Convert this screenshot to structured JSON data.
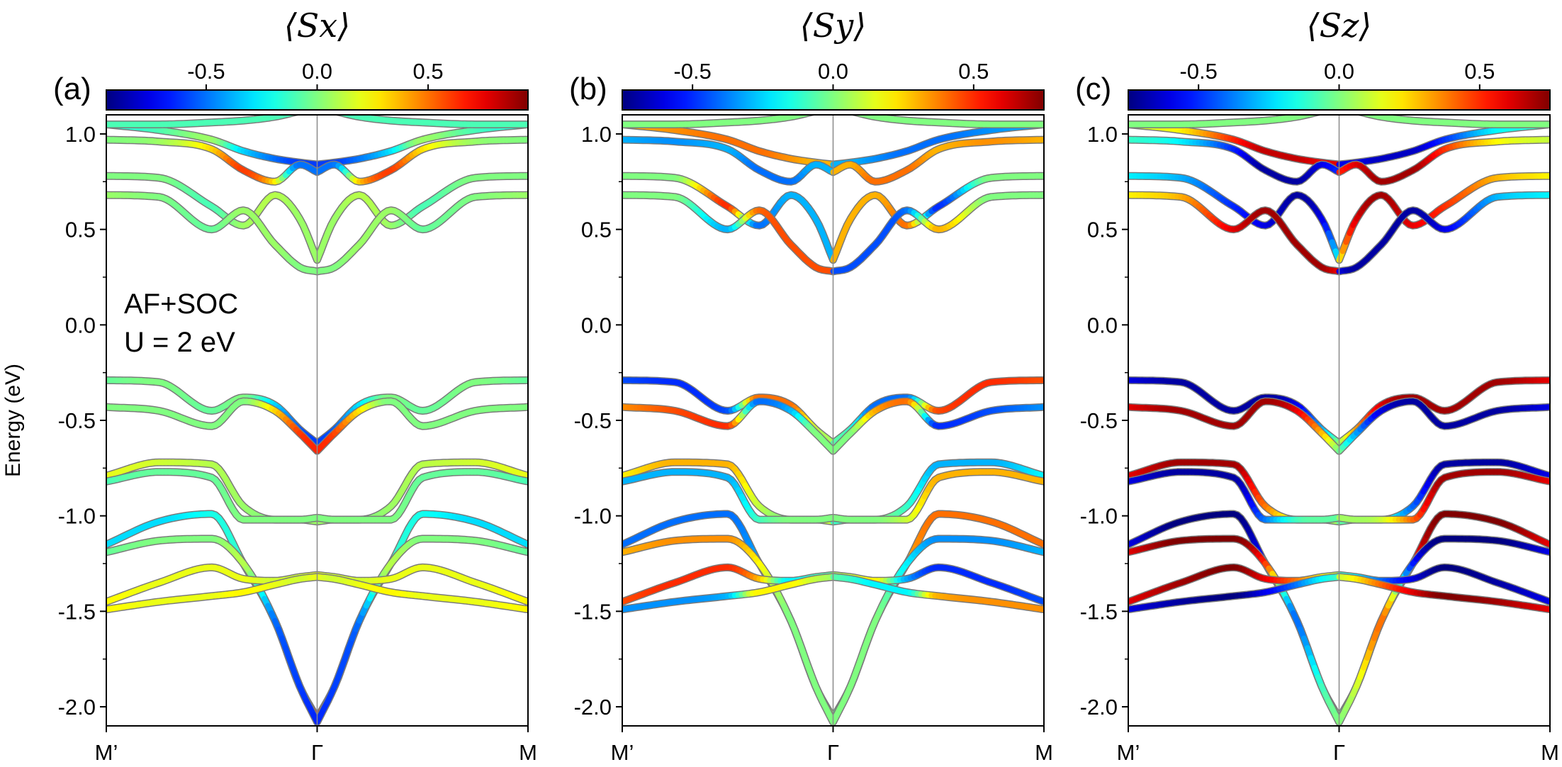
{
  "chart_data": [
    {
      "type": "line",
      "panel": "(a)",
      "colorbar_label": "⟨Sx⟩",
      "colorbar_ticks": [
        "-0.5",
        "0.0",
        "0.5"
      ],
      "colorbar_range": [
        -0.95,
        0.95
      ],
      "xlabels": [
        "M’",
        "Γ",
        "M"
      ],
      "ylabel": "Energy (eV)",
      "ylim": [
        -2.1,
        1.1
      ],
      "yticks": [
        "-2.0",
        "-1.5",
        "-1.0",
        "-0.5",
        "0.0",
        "0.5",
        "1.0"
      ],
      "annotation": [
        "AF+SOC",
        "U = 2 eV"
      ],
      "series": [
        {
          "y": [
            1.05,
            1.02,
            0.97,
            0.91,
            0.87,
            0.85,
            0.84
          ],
          "spin": [
            -0.2,
            -0.1,
            0.05,
            -0.3,
            -0.5,
            -0.6,
            -0.6
          ]
        },
        {
          "y": [
            0.97,
            0.96,
            0.92,
            0.81,
            0.75,
            0.84,
            0.8
          ],
          "spin": [
            0.0,
            0.05,
            0.3,
            0.6,
            0.3,
            -0.5,
            -0.5
          ]
        },
        {
          "y": [
            0.78,
            0.77,
            0.62,
            0.52,
            0.68,
            0.55,
            0.34
          ],
          "spin": [
            0.0,
            0.0,
            -0.1,
            0.05,
            0.1,
            0.05,
            0.05
          ]
        },
        {
          "y": [
            0.68,
            0.67,
            0.5,
            0.6,
            0.42,
            0.3,
            0.28
          ],
          "spin": [
            0.05,
            0.0,
            -0.05,
            0.05,
            0.05,
            0.0,
            0.0
          ]
        },
        {
          "y": [
            -0.29,
            -0.3,
            -0.45,
            -0.38,
            -0.42,
            -0.55,
            -0.62
          ],
          "spin": [
            -0.05,
            0.0,
            -0.05,
            0.0,
            -0.3,
            -0.55,
            -0.6
          ]
        },
        {
          "y": [
            -0.43,
            -0.45,
            -0.53,
            -0.4,
            -0.45,
            -0.57,
            -0.66
          ],
          "spin": [
            0.0,
            0.0,
            0.0,
            0.0,
            0.3,
            0.6,
            0.65
          ]
        },
        {
          "y": [
            -0.79,
            -0.72,
            -0.73,
            -0.95,
            -1.02,
            -1.02,
            -1.03
          ],
          "spin": [
            0.2,
            0.15,
            0.1,
            0.05,
            0.0,
            0.05,
            0.05
          ]
        },
        {
          "y": [
            -0.82,
            -0.77,
            -0.8,
            -1.02,
            -1.02,
            -1.02,
            -1.01
          ],
          "spin": [
            -0.1,
            -0.05,
            -0.05,
            0.0,
            0.0,
            0.0,
            0.0
          ]
        },
        {
          "y": [
            -1.15,
            -1.03,
            -0.99,
            -1.25,
            -1.55,
            -1.9,
            -2.06
          ],
          "spin": [
            -0.3,
            -0.3,
            -0.2,
            -0.1,
            0.5,
            0.6,
            0.65
          ]
        },
        {
          "y": [
            -1.19,
            -1.13,
            -1.12,
            -1.25,
            -1.55,
            -1.9,
            -2.08
          ],
          "spin": [
            -0.05,
            0.0,
            0.0,
            0.1,
            -0.5,
            -0.6,
            -0.65
          ]
        },
        {
          "y": [
            -1.45,
            -1.35,
            -1.27,
            -1.33,
            -1.34,
            -1.32,
            -1.31
          ],
          "spin": [
            0.25,
            0.2,
            0.2,
            0.2,
            0.15,
            0.15,
            0.2
          ]
        },
        {
          "y": [
            -1.49,
            -1.45,
            -1.42,
            -1.4,
            -1.36,
            -1.33,
            -1.32
          ],
          "spin": [
            0.25,
            0.2,
            0.2,
            0.25,
            0.2,
            0.15,
            0.2
          ]
        },
        {
          "y": [
            1.05,
            1.05,
            1.06,
            1.07,
            1.09,
            1.12,
            1.14
          ],
          "spin": [
            -0.1,
            -0.1,
            -0.1,
            -0.1,
            -0.1,
            -0.1,
            -0.1
          ]
        }
      ]
    },
    {
      "type": "line",
      "panel": "(b)",
      "colorbar_label": "⟨Sy⟩",
      "colorbar_ticks": [
        "-0.5",
        "0.0",
        "0.5"
      ],
      "colorbar_range": [
        -0.75,
        0.75
      ],
      "xlabels": [
        "M’",
        "Γ",
        "M"
      ],
      "ylim": [
        -2.1,
        1.1
      ],
      "yticks": [
        "-2.0",
        "-1.5",
        "-1.0",
        "-0.5",
        "0.0",
        "0.5",
        "1.0"
      ],
      "series": [
        {
          "y": [
            1.05,
            1.02,
            0.97,
            0.91,
            0.87,
            0.85,
            0.84
          ],
          "spin": [
            0.3,
            0.35,
            0.4,
            0.4,
            0.35,
            0.3,
            0.3
          ]
        },
        {
          "y": [
            0.97,
            0.96,
            0.92,
            0.81,
            0.75,
            0.84,
            0.8
          ],
          "spin": [
            -0.3,
            -0.35,
            -0.3,
            -0.4,
            -0.4,
            -0.3,
            -0.3
          ]
        },
        {
          "y": [
            0.78,
            0.77,
            0.62,
            0.52,
            0.68,
            0.55,
            0.34
          ],
          "spin": [
            0.0,
            0.0,
            0.5,
            -0.4,
            -0.3,
            -0.3,
            -0.3
          ]
        },
        {
          "y": [
            0.68,
            0.67,
            0.5,
            0.6,
            0.42,
            0.3,
            0.28
          ],
          "spin": [
            0.0,
            0.0,
            -0.3,
            0.4,
            0.45,
            0.45,
            0.45
          ]
        },
        {
          "y": [
            -0.29,
            -0.3,
            -0.45,
            -0.38,
            -0.42,
            -0.55,
            -0.62
          ],
          "spin": [
            -0.45,
            -0.5,
            -0.45,
            0.4,
            0.4,
            0.1,
            0.05
          ]
        },
        {
          "y": [
            -0.43,
            -0.45,
            -0.53,
            -0.4,
            -0.45,
            -0.57,
            -0.66
          ],
          "spin": [
            0.35,
            0.45,
            0.5,
            -0.4,
            -0.3,
            0.0,
            0.0
          ]
        },
        {
          "y": [
            -0.79,
            -0.72,
            -0.73,
            -0.95,
            -1.02,
            -1.02,
            -1.03
          ],
          "spin": [
            0.2,
            0.3,
            0.3,
            0.1,
            0.0,
            0.1,
            0.1
          ]
        },
        {
          "y": [
            -0.82,
            -0.77,
            -0.8,
            -1.02,
            -1.02,
            -1.02,
            -1.01
          ],
          "spin": [
            -0.3,
            -0.3,
            -0.3,
            -0.1,
            0.0,
            0.0,
            0.0
          ]
        },
        {
          "y": [
            -1.15,
            -1.03,
            -0.99,
            -1.25,
            -1.55,
            -1.9,
            -2.06
          ],
          "spin": [
            -0.4,
            -0.4,
            -0.4,
            -0.3,
            0.0,
            0.05,
            0.05
          ]
        },
        {
          "y": [
            -1.19,
            -1.13,
            -1.12,
            -1.25,
            -1.55,
            -1.9,
            -2.08
          ],
          "spin": [
            0.3,
            0.35,
            0.35,
            0.2,
            0.0,
            0.0,
            0.0
          ]
        },
        {
          "y": [
            -1.45,
            -1.35,
            -1.27,
            -1.33,
            -1.34,
            -1.32,
            -1.31
          ],
          "spin": [
            0.45,
            0.5,
            0.5,
            0.3,
            -0.2,
            -0.1,
            -0.05
          ]
        },
        {
          "y": [
            -1.49,
            -1.45,
            -1.42,
            -1.4,
            -1.36,
            -1.33,
            -1.32
          ],
          "spin": [
            -0.35,
            -0.35,
            -0.3,
            0.2,
            0.2,
            0.1,
            0.05
          ]
        },
        {
          "y": [
            1.05,
            1.05,
            1.06,
            1.07,
            1.09,
            1.12,
            1.14
          ],
          "spin": [
            0.0,
            0.0,
            0.0,
            0.0,
            0.0,
            0.0,
            0.0
          ]
        }
      ]
    },
    {
      "type": "line",
      "panel": "(c)",
      "colorbar_label": "⟨Sz⟩",
      "colorbar_ticks": [
        "-0.5",
        "0.0",
        "0.5"
      ],
      "colorbar_range": [
        -0.75,
        0.75
      ],
      "xlabels": [
        "M’",
        "Γ",
        "M"
      ],
      "ylim": [
        -2.1,
        1.1
      ],
      "yticks": [
        "-2.0",
        "-1.5",
        "-1.0",
        "-0.5",
        "0.0",
        "0.5",
        "1.0"
      ],
      "series": [
        {
          "y": [
            1.05,
            1.02,
            0.97,
            0.91,
            0.87,
            0.85,
            0.84
          ],
          "spin": [
            0.1,
            0.2,
            0.5,
            0.65,
            0.65,
            0.6,
            0.6
          ]
        },
        {
          "y": [
            0.97,
            0.96,
            0.92,
            0.81,
            0.75,
            0.84,
            0.8
          ],
          "spin": [
            -0.1,
            -0.2,
            -0.5,
            -0.7,
            -0.7,
            -0.6,
            -0.5
          ]
        },
        {
          "y": [
            0.78,
            0.77,
            0.62,
            0.52,
            0.68,
            0.55,
            0.34
          ],
          "spin": [
            -0.2,
            -0.3,
            -0.5,
            -0.6,
            -0.7,
            -0.6,
            -0.2
          ]
        },
        {
          "y": [
            0.68,
            0.67,
            0.5,
            0.6,
            0.42,
            0.3,
            0.28
          ],
          "spin": [
            0.2,
            0.3,
            0.6,
            0.7,
            0.7,
            0.7,
            0.6
          ]
        },
        {
          "y": [
            -0.29,
            -0.3,
            -0.45,
            -0.38,
            -0.42,
            -0.55,
            -0.62
          ],
          "spin": [
            -0.6,
            -0.7,
            -0.7,
            -0.7,
            -0.6,
            -0.3,
            0.0
          ]
        },
        {
          "y": [
            -0.43,
            -0.45,
            -0.53,
            -0.4,
            -0.45,
            -0.57,
            -0.66
          ],
          "spin": [
            0.6,
            0.7,
            0.7,
            0.7,
            0.6,
            0.3,
            0.0
          ]
        },
        {
          "y": [
            -0.79,
            -0.72,
            -0.73,
            -0.95,
            -1.02,
            -1.02,
            -1.03
          ],
          "spin": [
            0.6,
            0.7,
            0.7,
            0.4,
            0.1,
            0.05,
            0.05
          ]
        },
        {
          "y": [
            -0.82,
            -0.77,
            -0.8,
            -1.02,
            -1.02,
            -1.02,
            -1.01
          ],
          "spin": [
            -0.6,
            -0.7,
            -0.7,
            -0.4,
            -0.1,
            -0.05,
            -0.05
          ]
        },
        {
          "y": [
            -1.15,
            -1.03,
            -0.99,
            -1.25,
            -1.55,
            -1.9,
            -2.06
          ],
          "spin": [
            -0.6,
            -0.75,
            -0.75,
            -0.5,
            0.4,
            0.1,
            0.0
          ]
        },
        {
          "y": [
            -1.19,
            -1.13,
            -1.12,
            -1.25,
            -1.55,
            -1.9,
            -2.08
          ],
          "spin": [
            0.6,
            0.75,
            0.75,
            0.5,
            -0.4,
            -0.1,
            0.0
          ]
        },
        {
          "y": [
            -1.45,
            -1.35,
            -1.27,
            -1.33,
            -1.34,
            -1.32,
            -1.31
          ],
          "spin": [
            0.6,
            0.7,
            0.75,
            0.6,
            0.4,
            0.2,
            0.1
          ]
        },
        {
          "y": [
            -1.49,
            -1.45,
            -1.42,
            -1.4,
            -1.36,
            -1.33,
            -1.32
          ],
          "spin": [
            -0.6,
            -0.7,
            -0.75,
            -0.6,
            -0.4,
            -0.2,
            -0.1
          ]
        },
        {
          "y": [
            1.05,
            1.05,
            1.06,
            1.07,
            1.09,
            1.12,
            1.14
          ],
          "spin": [
            0.0,
            0.0,
            0.0,
            0.0,
            0.0,
            0.0,
            0.0
          ]
        }
      ]
    }
  ]
}
